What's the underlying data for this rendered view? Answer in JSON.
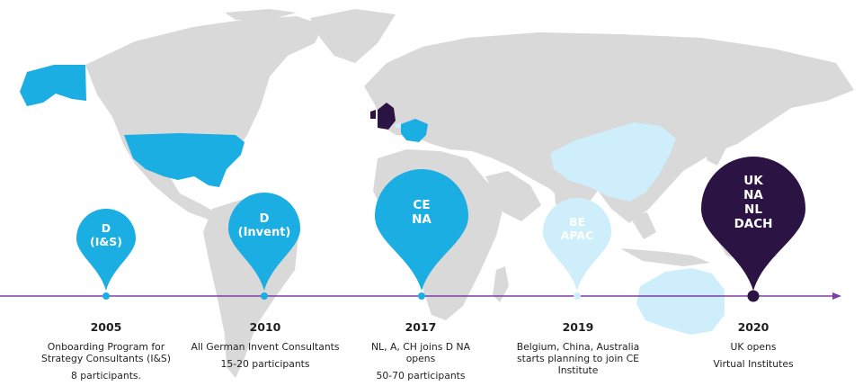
{
  "colors": {
    "land": "#d9d9d9",
    "ocean": "#ffffff",
    "blue": "#1aaee3",
    "light_blue": "#cdeefa",
    "dark_purple": "#2b1443",
    "line": "#7b3fa6"
  },
  "pins": [
    {
      "label": "D\n(I&S)",
      "color": "#1aaee3"
    },
    {
      "label": "D\n(Invent)",
      "color": "#1aaee3"
    },
    {
      "label": "CE\nNA",
      "color": "#1aaee3"
    },
    {
      "label": "BE\nAPAC",
      "color": "#cdeefa"
    },
    {
      "label": "UK\nNA\nNL\nDACH",
      "color": "#2b1443"
    }
  ],
  "events": [
    {
      "year": "2005",
      "text": "Onboarding Program for Strategy Consultants (I&S)",
      "participants": "8 participants."
    },
    {
      "year": "2010",
      "text": "All German Invent Consultants",
      "participants": "15-20 participants"
    },
    {
      "year": "2017",
      "text": "NL, A, CH joins D NA opens",
      "participants": "50-70 participants"
    },
    {
      "year": "2019",
      "text": "Belgium, China, Australia starts planning to join CE Institute",
      "participants": ""
    },
    {
      "year": "2020",
      "text": "UK opens",
      "participants": "Virtual Institutes"
    }
  ]
}
